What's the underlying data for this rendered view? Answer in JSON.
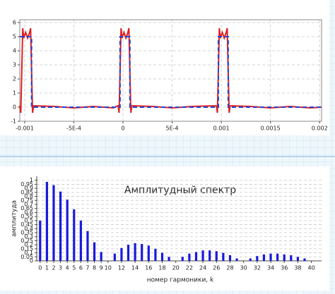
{
  "chart_data": [
    {
      "type": "line",
      "xlim": [
        -0.00105,
        0.00202
      ],
      "ylim": [
        -1,
        6.2
      ],
      "xticks": [
        -0.001,
        {
          "value": -0.0005,
          "label": "-5E-4"
        },
        0,
        {
          "value": 0.0005,
          "label": "5E-4"
        },
        0.001,
        0.0015,
        0.002
      ],
      "yticks": [
        -1,
        0,
        1,
        2,
        3,
        4,
        5,
        6
      ],
      "grid": true,
      "series": [
        {
          "color": "#e02020",
          "dash": false,
          "x": [
            -0.00105,
            -0.00104,
            -0.00103,
            -0.00102,
            -0.00101,
            -0.00099,
            -0.00097,
            -0.00095,
            -0.00094,
            -0.00093,
            -0.00092,
            -0.00091,
            -0.0007,
            -0.0005,
            -0.0003,
            -0.0001,
            -5e-05,
            -4e-05,
            -3e-05,
            -2e-05,
            -1e-05,
            1e-05,
            3e-05,
            5e-05,
            6e-05,
            7e-05,
            8e-05,
            9e-05,
            0.0003,
            0.0005,
            0.0007,
            0.00095,
            0.00096,
            0.00097,
            0.00098,
            0.00099,
            0.00101,
            0.00103,
            0.00105,
            0.00106,
            0.00107,
            0.00108,
            0.00109,
            0.0013,
            0.0015,
            0.0017,
            0.0019,
            0.00202
          ],
          "values": [
            0.1,
            -0.4,
            2.5,
            5.6,
            4.9,
            5.3,
            4.9,
            5.3,
            5.6,
            2.5,
            -0.4,
            0.1,
            0.05,
            -0.05,
            0.05,
            -0.05,
            0.1,
            -0.4,
            2.5,
            5.6,
            4.9,
            5.3,
            4.9,
            5.3,
            5.6,
            2.5,
            -0.4,
            0.1,
            0.05,
            -0.05,
            0.05,
            0.1,
            -0.4,
            2.5,
            5.6,
            4.9,
            5.3,
            4.9,
            5.3,
            5.6,
            2.5,
            -0.4,
            0.1,
            0.05,
            -0.05,
            0.05,
            -0.05,
            0
          ]
        },
        {
          "color": "#2444d8",
          "dash": true,
          "x": [
            -0.00105,
            -0.00093,
            -0.00093,
            -3e-05,
            -3e-05,
            7e-05,
            7e-05,
            0.00097,
            0.00097,
            0.00107,
            0.00107,
            0.00202
          ],
          "values": [
            5,
            5,
            0,
            0,
            5,
            5,
            0,
            0,
            5,
            5,
            0,
            0
          ]
        }
      ]
    },
    {
      "type": "bar",
      "title": "Амплитудный спектр",
      "x_label": "номер гармоники, k",
      "y_label": "амплитуда",
      "color": "#1a1adc",
      "xlim": [
        -0.5,
        41.5
      ],
      "ylim": [
        0,
        1.05
      ],
      "xticks": [
        0,
        1,
        2,
        3,
        4,
        5,
        6,
        7,
        8,
        9,
        10,
        12,
        14,
        16,
        18,
        20,
        22,
        24,
        26,
        28,
        30,
        32,
        34,
        36,
        38,
        40
      ],
      "yticks": [
        0,
        0.05,
        0.1,
        0.15,
        0.2,
        0.25,
        0.3,
        0.35,
        0.4,
        0.45,
        0.5,
        0.55,
        0.6,
        0.65,
        0.7,
        0.75,
        0.8,
        0.85,
        0.9,
        0.95,
        1
      ],
      "grid": true,
      "x": [
        0,
        1,
        2,
        3,
        4,
        5,
        6,
        7,
        8,
        9,
        10,
        11,
        12,
        13,
        14,
        15,
        16,
        17,
        18,
        19,
        20,
        21,
        22,
        23,
        24,
        25,
        26,
        27,
        28,
        29,
        30,
        31,
        32,
        33,
        34,
        35,
        36,
        37,
        38,
        39,
        40
      ],
      "values": [
        0.5,
        0.98,
        0.94,
        0.86,
        0.76,
        0.64,
        0.5,
        0.37,
        0.23,
        0.11,
        0,
        0.09,
        0.16,
        0.2,
        0.22,
        0.21,
        0.19,
        0.15,
        0.1,
        0.05,
        0,
        0.05,
        0.09,
        0.11,
        0.13,
        0.13,
        0.12,
        0.1,
        0.07,
        0.03,
        0,
        0.03,
        0.06,
        0.08,
        0.09,
        0.09,
        0.08,
        0.07,
        0.05,
        0.03,
        0
      ]
    }
  ]
}
